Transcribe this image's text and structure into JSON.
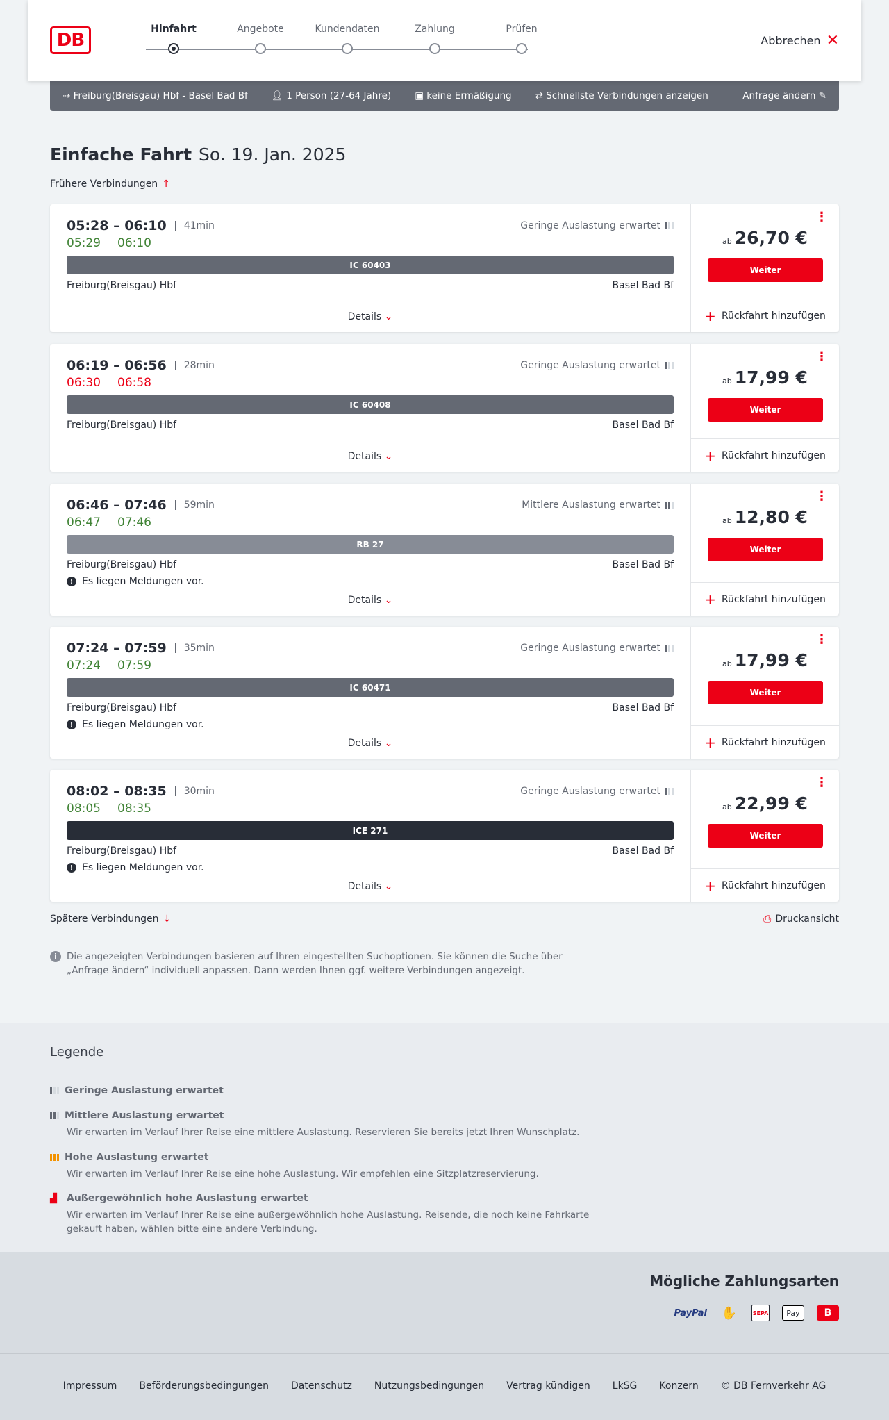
{
  "header": {
    "logo": "DB",
    "steps": [
      "Hinfahrt",
      "Angebote",
      "Kundendaten",
      "Zahlung",
      "Prüfen"
    ],
    "active_step": 0,
    "cancel": "Abbrechen"
  },
  "search": {
    "route": "Freiburg(Breisgau) Hbf - Basel Bad Bf",
    "passengers": "1 Person (27-64 Jahre)",
    "discount": "keine Ermäßigung",
    "filter": "Schnellste Verbindungen anzeigen",
    "edit": "Anfrage ändern"
  },
  "page": {
    "title": "Einfache Fahrt",
    "date": "So. 19. Jan. 2025",
    "earlier": "Frühere Verbindungen",
    "later": "Spätere Verbindungen",
    "print": "Druckansicht",
    "info": "Die angezeigten Verbindungen basieren auf Ihren eingestellten Suchoptionen. Sie können die Suche über „Anfrage ändern“ individuell anpassen. Dann werden Ihnen ggf. weitere Verbindungen angezeigt."
  },
  "labels": {
    "details": "Details",
    "price_prefix": "ab",
    "continue": "Weiter",
    "return": "Rückfahrt hinzufügen"
  },
  "colors": {
    "accent": "#ec0016",
    "on_time": "#408335",
    "delayed": "#ec0016",
    "ic": "#646973",
    "rb": "#878c96",
    "ice": "#282d37"
  },
  "connections": [
    {
      "time": "05:28 – 06:10",
      "duration": "41min",
      "occupancy": "Geringe Auslastung erwartet",
      "occ_level": 1,
      "rt_dep": "05:29",
      "rt_arr": "06:10",
      "dep_delayed": false,
      "arr_delayed": false,
      "train": "IC 60403",
      "train_type": "ic",
      "from": "Freiburg(Breisgau) Hbf",
      "to": "Basel Bad Bf",
      "message": "",
      "price": "26,70 €"
    },
    {
      "time": "06:19 – 06:56",
      "duration": "28min",
      "occupancy": "Geringe Auslastung erwartet",
      "occ_level": 1,
      "rt_dep": "06:30",
      "rt_arr": "06:58",
      "dep_delayed": true,
      "arr_delayed": true,
      "train": "IC 60408",
      "train_type": "ic",
      "from": "Freiburg(Breisgau) Hbf",
      "to": "Basel Bad Bf",
      "message": "",
      "price": "17,99 €"
    },
    {
      "time": "06:46 – 07:46",
      "duration": "59min",
      "occupancy": "Mittlere Auslastung erwartet",
      "occ_level": 2,
      "rt_dep": "06:47",
      "rt_arr": "07:46",
      "dep_delayed": false,
      "arr_delayed": false,
      "train": "RB 27",
      "train_type": "rb",
      "from": "Freiburg(Breisgau) Hbf",
      "to": "Basel Bad Bf",
      "message": "Es liegen Meldungen vor.",
      "price": "12,80 €"
    },
    {
      "time": "07:24 – 07:59",
      "duration": "35min",
      "occupancy": "Geringe Auslastung erwartet",
      "occ_level": 1,
      "rt_dep": "07:24",
      "rt_arr": "07:59",
      "dep_delayed": false,
      "arr_delayed": false,
      "train": "IC 60471",
      "train_type": "ic",
      "from": "Freiburg(Breisgau) Hbf",
      "to": "Basel Bad Bf",
      "message": "Es liegen Meldungen vor.",
      "price": "17,99 €"
    },
    {
      "time": "08:02 – 08:35",
      "duration": "30min",
      "occupancy": "Geringe Auslastung erwartet",
      "occ_level": 1,
      "rt_dep": "08:05",
      "rt_arr": "08:35",
      "dep_delayed": false,
      "arr_delayed": false,
      "train": "ICE 271",
      "train_type": "ice",
      "from": "Freiburg(Breisgau) Hbf",
      "to": "Basel Bad Bf",
      "message": "Es liegen Meldungen vor.",
      "price": "22,99 €"
    }
  ],
  "legend": {
    "title": "Legende",
    "items": [
      {
        "title": "Geringe Auslastung erwartet",
        "text": ""
      },
      {
        "title": "Mittlere Auslastung erwartet",
        "text": "Wir erwarten im Verlauf Ihrer Reise eine mittlere Auslastung. Reservieren Sie bereits jetzt Ihren Wunschplatz."
      },
      {
        "title": "Hohe Auslastung erwartet",
        "text": "Wir erwarten im Verlauf Ihrer Reise eine hohe Auslastung. Wir empfehlen eine Sitzplatzreservierung."
      },
      {
        "title": "Außergewöhnlich hohe Auslastung erwartet",
        "text": "Wir erwarten im Verlauf Ihrer Reise eine außergewöhnlich hohe Auslastung. Reisende, die noch keine Fahrkarte gekauft haben, wählen bitte eine andere Verbindung."
      }
    ]
  },
  "payment": {
    "title": "Mögliche Zahlungsarten",
    "methods": [
      "PayPal",
      "Kreditkarte",
      "SEPA",
      "Pay",
      "DB Bonus"
    ]
  },
  "footer": [
    "Impressum",
    "Beförderungsbedingungen",
    "Datenschutz",
    "Nutzungsbedingungen",
    "Vertrag kündigen",
    "LkSG",
    "Konzern",
    "© DB Fernverkehr AG"
  ]
}
